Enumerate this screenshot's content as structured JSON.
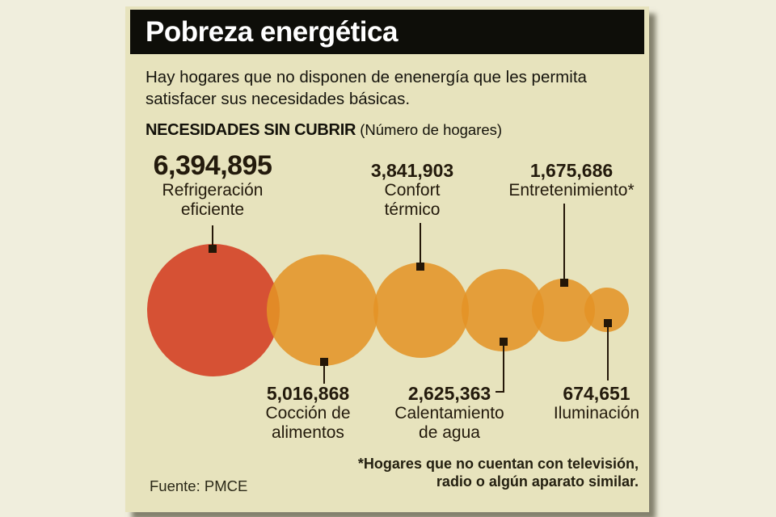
{
  "title": "Pobreza energética",
  "subtitle": {
    "lines": [
      "Hay hogares que no disponen de enenergía que les permita",
      "satisfacer sus necesidades básicas."
    ]
  },
  "section": {
    "heading": "NECESIDADES SIN CUBRIR",
    "subheading": " (Número de hogares)"
  },
  "source": "Fuente: PMCE",
  "footnote": {
    "lines": [
      "*Hogares que no cuentan con televisión,",
      "radio o algún aparato similar."
    ]
  },
  "colors": {
    "page_background": "#f0eedd",
    "card_background": "#e7e3bd",
    "title_bar": "#0e0e09",
    "title_text": "#ffffff",
    "bubble_red": "#d65134",
    "bubble_orange": "#e4931e",
    "connector": "#241708",
    "label_text": "#231a0c"
  },
  "chart_data": {
    "type": "bubble",
    "title": "NECESIDADES SIN CUBRIR (Número de hogares)",
    "sizing": "circle area proportional to number of households",
    "legend_position": "none",
    "items": [
      {
        "label": "Refrigeración eficiente",
        "label_line1": "Refrigeración",
        "label_line2": "eficiente",
        "value": 6394895,
        "value_text": "6,394,895",
        "color": "#d65134",
        "label_position": "top"
      },
      {
        "label": "Cocción de alimentos",
        "label_line1": "Cocción de",
        "label_line2": "alimentos",
        "value": 5016868,
        "value_text": "5,016,868",
        "color": "#e4931e",
        "label_position": "bottom"
      },
      {
        "label": "Confort térmico",
        "label_line1": "Confort",
        "label_line2": "térmico",
        "value": 3841903,
        "value_text": "3,841,903",
        "color": "#e4931e",
        "label_position": "top"
      },
      {
        "label": "Calentamiento de agua",
        "label_line1": "Calentamiento",
        "label_line2": "de agua",
        "value": 2625363,
        "value_text": "2,625,363",
        "color": "#e4931e",
        "label_position": "bottom"
      },
      {
        "label": "Entretenimiento*",
        "label_line1": "Entretenimiento*",
        "label_line2": "",
        "value": 1675686,
        "value_text": "1,675,686",
        "color": "#e4931e",
        "label_position": "top"
      },
      {
        "label": "Iluminación",
        "label_line1": "Iluminación",
        "label_line2": "",
        "value": 674651,
        "value_text": "674,651",
        "color": "#e4931e",
        "label_position": "bottom"
      }
    ]
  }
}
